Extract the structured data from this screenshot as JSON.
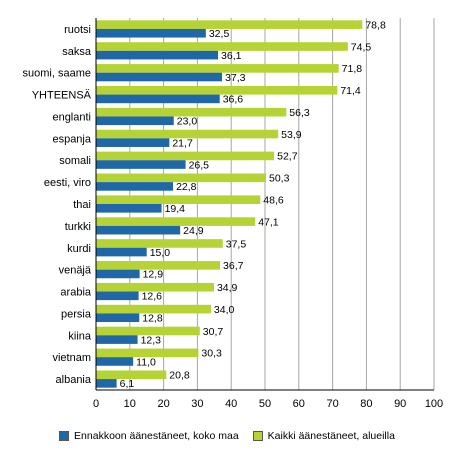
{
  "chart_data": {
    "type": "bar",
    "orientation": "horizontal",
    "categories": [
      "ruotsi",
      "saksa",
      "suomi, saame",
      "YHTEENSÄ",
      "englanti",
      "espanja",
      "somali",
      "eesti, viro",
      "thai",
      "turkki",
      "kurdi",
      "venäjä",
      "arabia",
      "persia",
      "kiina",
      "vietnam",
      "albania"
    ],
    "series": [
      {
        "name": "Kaikki äänestäneet, alueilla",
        "color": "#b5d334",
        "values": [
          78.8,
          74.5,
          71.8,
          71.4,
          56.3,
          53.9,
          52.7,
          50.3,
          48.6,
          47.1,
          37.5,
          36.7,
          34.9,
          34.0,
          30.7,
          30.3,
          20.8
        ],
        "labels": [
          "78,8",
          "74,5",
          "71,8",
          "71,4",
          "56,3",
          "53,9",
          "52,7",
          "50,3",
          "48,6",
          "47,1",
          "37,5",
          "36,7",
          "34,9",
          "34,0",
          "30,7",
          "30,3",
          "20,8"
        ]
      },
      {
        "name": "Ennakkoon äänestäneet, koko maa",
        "color": "#1f67a6",
        "values": [
          32.5,
          36.1,
          37.3,
          36.6,
          23.0,
          21.7,
          26.5,
          22.8,
          19.4,
          24.9,
          15.0,
          12.9,
          12.6,
          12.8,
          12.3,
          11.0,
          6.1
        ],
        "labels": [
          "32,5",
          "36,1",
          "37,3",
          "36,6",
          "23,0",
          "21,7",
          "26,5",
          "22,8",
          "19,4",
          "24,9",
          "15,0",
          "12,9",
          "12,6",
          "12,8",
          "12,3",
          "11,0",
          "6,1"
        ]
      }
    ],
    "xlim": [
      0,
      100
    ],
    "xticks": [
      "0",
      "10",
      "20",
      "30",
      "40",
      "50",
      "60",
      "70",
      "80",
      "90",
      "100"
    ],
    "grid": "vertical",
    "legend_position": "bottom"
  },
  "legend": [
    {
      "label": "Ennakkoon äänestäneet, koko maa",
      "color": "#1f67a6"
    },
    {
      "label": "Kaikki äänestäneet, alueilla",
      "color": "#b5d334"
    }
  ]
}
